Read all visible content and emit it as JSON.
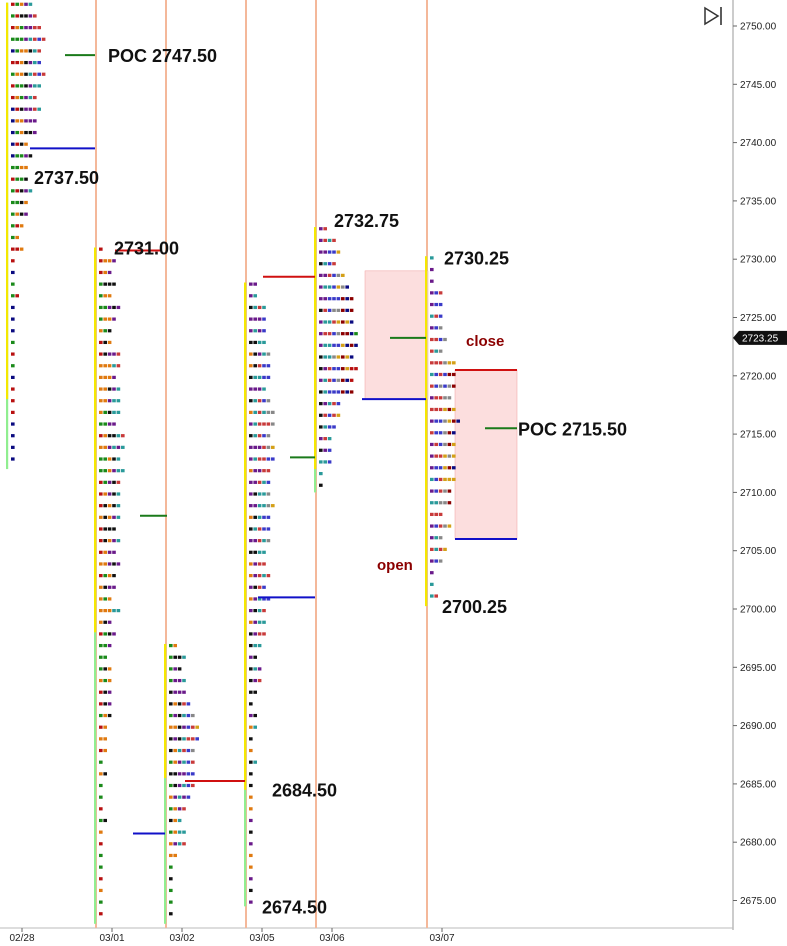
{
  "chart_data": {
    "type": "market-profile",
    "y_axis": {
      "min": 2673,
      "max": 2752,
      "ticks": [
        "2750.00",
        "2745.00",
        "2740.00",
        "2735.00",
        "2730.00",
        "2725.00",
        "2720.00",
        "2715.00",
        "2710.00",
        "2705.00",
        "2700.00",
        "2695.00",
        "2690.00",
        "2685.00",
        "2680.00",
        "2675.00"
      ],
      "tick_values": [
        2750,
        2745,
        2740,
        2735,
        2730,
        2725,
        2720,
        2715,
        2710,
        2705,
        2700,
        2695,
        2690,
        2685,
        2680,
        2675
      ],
      "current_price": 2723.25,
      "current_price_label": "2723.25"
    },
    "x_axis": {
      "dates": [
        "02/28",
        "03/01",
        "03/02",
        "03/05",
        "03/06",
        "03/07"
      ]
    },
    "sessions": [
      {
        "date": "02/28",
        "high": 2752.0,
        "low": 2712.0,
        "poc": 2747.5,
        "ib_high": 2752.0,
        "ib_low": 2718.0,
        "va_low": 2739.5,
        "max_width": 8
      },
      {
        "date": "03/01",
        "high": 2731.0,
        "low": 2673.0,
        "poc": 2711.5,
        "ib_high": 2731.0,
        "ib_low": 2698.0,
        "va_low": 2680.75,
        "max_width": 6
      },
      {
        "date": "03/02",
        "high": 2697.0,
        "low": 2673.0,
        "poc": 2689.0,
        "ib_high": 2697.0,
        "ib_low": 2685.5,
        "va_low": 2680.0,
        "max_width": 7
      },
      {
        "date": "03/05",
        "high": 2728.0,
        "low": 2674.5,
        "poc": 2713.0,
        "ib_high": 2728.0,
        "ib_low": 2684.5,
        "va_low": 2701.0,
        "max_width": 6
      },
      {
        "date": "03/06",
        "high": 2732.75,
        "low": 2710.0,
        "poc": 2723.0,
        "ib_high": 2732.75,
        "ib_low": 2712.0,
        "va_low": 2718.0,
        "max_width": 10
      },
      {
        "date": "03/07",
        "high": 2730.25,
        "low": 2700.25,
        "poc": 2715.5,
        "ib_high": 2730.25,
        "ib_low": 2700.25,
        "va_low": 2706.0,
        "max_width": 7
      }
    ],
    "range_lines": [
      {
        "price": 2747.5,
        "color": "#1a7a1a"
      },
      {
        "price": 2739.5,
        "color": "#1010c8"
      },
      {
        "price": 2730.75,
        "color": "#d01010"
      },
      {
        "price": 2708.0,
        "color": "#1a7a1a"
      },
      {
        "price": 2680.75,
        "color": "#1010c8"
      },
      {
        "price": 2685.25,
        "color": "#d01010"
      },
      {
        "price": 2713.0,
        "color": "#1a7a1a"
      },
      {
        "price": 2701.0,
        "color": "#1010c8"
      },
      {
        "price": 2728.5,
        "color": "#d01010"
      },
      {
        "price": 2723.25,
        "color": "#1a7a1a"
      },
      {
        "price": 2718.0,
        "color": "#1010c8"
      },
      {
        "price": 2715.5,
        "color": "#1a7a1a"
      },
      {
        "price": 2706.0,
        "color": "#1010c8"
      },
      {
        "price": 2720.5,
        "color": "#d01010"
      }
    ],
    "value_areas": [
      {
        "date": "03/06",
        "high": 2729.0,
        "low": 2718.0
      },
      {
        "date": "03/07",
        "high": 2720.5,
        "low": 2706.0
      }
    ],
    "annotations": [
      {
        "text": "POC 2747.50",
        "price": 2747.5
      },
      {
        "text": "2737.50",
        "price": 2737.5
      },
      {
        "text": "2731.00",
        "price": 2731.0
      },
      {
        "text": "2732.75",
        "price": 2732.75
      },
      {
        "text": "2730.25",
        "price": 2730.25
      },
      {
        "text": "close",
        "price": 2723.25
      },
      {
        "text": "POC 2715.50",
        "price": 2715.5
      },
      {
        "text": "open",
        "price": 2702.5
      },
      {
        "text": "2700.25",
        "price": 2700.25
      },
      {
        "text": "2684.50",
        "price": 2684.5
      },
      {
        "text": "2674.50",
        "price": 2674.5
      }
    ],
    "colors": {
      "tpo": [
        "#0a0a80",
        "#b81010",
        "#1a8a1a",
        "#e07a10",
        "#101010",
        "#6a1a8a",
        "#2a9a9a",
        "#c83a3a",
        "#3a3ac8",
        "#888888",
        "#d4a017",
        "#8b0000"
      ],
      "ib_bar": "#f5e800",
      "session_bar": "#90ee90",
      "separator": "#f4b89a",
      "value_area": "#fcdede",
      "annotation_text": "#111111",
      "open_close_text": "#8b0000",
      "price_label_bg": "#111111"
    }
  },
  "nav": {
    "icon": "skip-to-end-icon"
  }
}
